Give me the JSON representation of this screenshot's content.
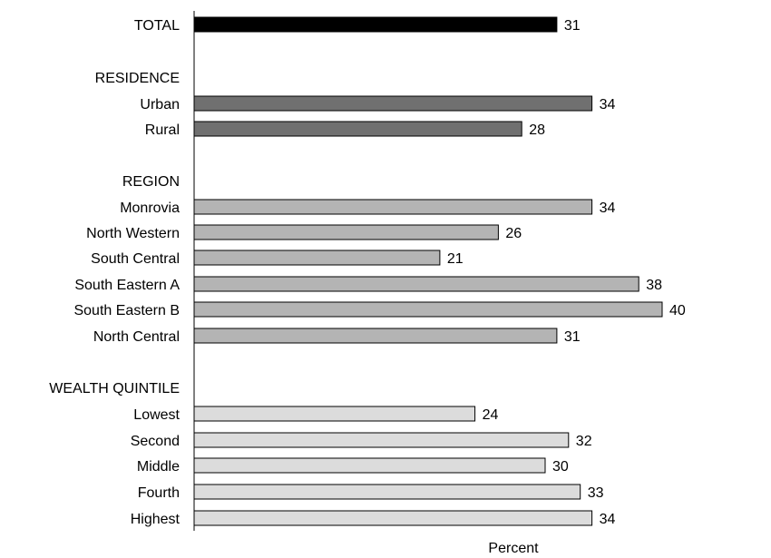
{
  "chart_data": {
    "type": "bar",
    "orientation": "horizontal",
    "xlabel": "Percent",
    "xlim": [
      0,
      40
    ],
    "grid": false,
    "rows": [
      {
        "label": "TOTAL",
        "value": 31,
        "group": "total",
        "color": "#000000"
      },
      {
        "label": "RESIDENCE",
        "header": true
      },
      {
        "label": "Urban",
        "value": 34,
        "group": "residence",
        "color": "#707070"
      },
      {
        "label": "Rural",
        "value": 28,
        "group": "residence",
        "color": "#707070"
      },
      {
        "label": "REGION",
        "header": true
      },
      {
        "label": "Monrovia",
        "value": 34,
        "group": "region",
        "color": "#b4b4b4"
      },
      {
        "label": "North Western",
        "value": 26,
        "group": "region",
        "color": "#b4b4b4"
      },
      {
        "label": "South Central",
        "value": 21,
        "group": "region",
        "color": "#b4b4b4"
      },
      {
        "label": "South Eastern A",
        "value": 38,
        "group": "region",
        "color": "#b4b4b4"
      },
      {
        "label": "South Eastern B",
        "value": 40,
        "group": "region",
        "color": "#b4b4b4"
      },
      {
        "label": "North Central",
        "value": 31,
        "group": "region",
        "color": "#b4b4b4"
      },
      {
        "label": "WEALTH QUINTILE",
        "header": true
      },
      {
        "label": "Lowest",
        "value": 24,
        "group": "wealth",
        "color": "#dcdcdc"
      },
      {
        "label": "Second",
        "value": 32,
        "group": "wealth",
        "color": "#dcdcdc"
      },
      {
        "label": "Middle",
        "value": 30,
        "group": "wealth",
        "color": "#dcdcdc"
      },
      {
        "label": "Fourth",
        "value": 33,
        "group": "wealth",
        "color": "#dcdcdc"
      },
      {
        "label": "Highest",
        "value": 34,
        "group": "wealth",
        "color": "#dcdcdc"
      }
    ]
  }
}
